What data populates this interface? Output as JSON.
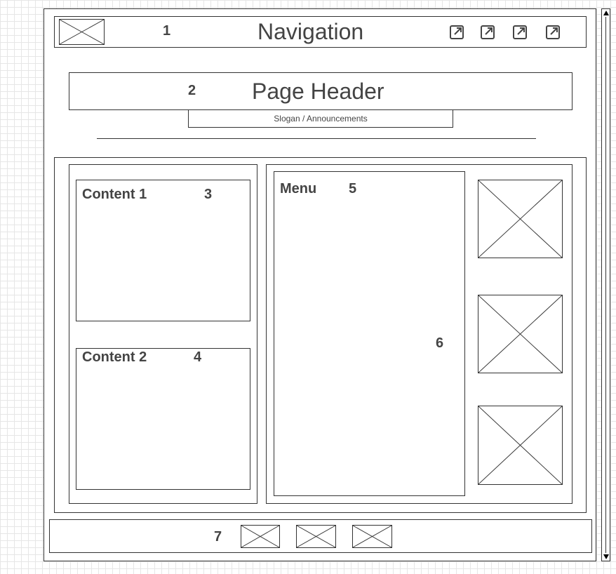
{
  "navigation": {
    "label": "Navigation",
    "number": "1",
    "logo_icon": "image-placeholder-icon",
    "link_icons": [
      "external-link-icon",
      "external-link-icon",
      "external-link-icon",
      "external-link-icon"
    ]
  },
  "header": {
    "label": "Page Header",
    "number": "2",
    "slogan": "Slogan / Announcements"
  },
  "content1": {
    "label": "Content 1",
    "number": "3"
  },
  "content2": {
    "label": "Content 2",
    "number": "4"
  },
  "menu": {
    "label": "Menu",
    "number": "5"
  },
  "sidebar": {
    "number": "6",
    "image_icon": "image-placeholder-icon"
  },
  "footer": {
    "number": "7",
    "image_icon": "image-placeholder-icon"
  },
  "colors": {
    "stroke": "#333333",
    "text": "#444444",
    "grid": "#e6e6e6"
  }
}
